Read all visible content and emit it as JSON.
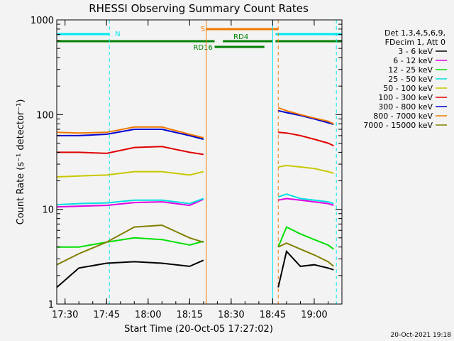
{
  "chart_data": {
    "type": "line",
    "title": "RHESSI Observing Summary Count Rates",
    "xlabel": "Start Time (20-Oct-05 17:27:02)",
    "ylabel": "Count Rate (s⁻¹ detector⁻¹)",
    "yscale": "log",
    "xlim": [
      "17:27",
      "19:10"
    ],
    "ylim": [
      1,
      1000
    ],
    "x_ticks": [
      "17:30",
      "17:45",
      "18:00",
      "18:15",
      "18:30",
      "18:45",
      "19:00"
    ],
    "y_ticks": [
      "1",
      "10",
      "100",
      "1000"
    ],
    "legend_header": [
      "Det 1,3,4,5,6,9,",
      "FDecim 1, Att 0"
    ],
    "legend_position": "right",
    "footer": "20-Oct-2021 19:18",
    "series": [
      {
        "name": "3 - 6 keV",
        "color": "#000000",
        "x": [
          "17:27",
          "17:35",
          "17:45",
          "17:55",
          "18:05",
          "18:15",
          "18:20",
          "18:47",
          "18:50",
          "18:55",
          "19:00",
          "19:05",
          "19:07"
        ],
        "y": [
          1.5,
          2.4,
          2.7,
          2.8,
          2.7,
          2.5,
          2.9,
          1.5,
          3.6,
          2.5,
          2.6,
          2.4,
          2.3
        ]
      },
      {
        "name": "6 - 12 keV",
        "color": "#e000e0",
        "x": [
          "17:27",
          "17:35",
          "17:45",
          "17:55",
          "18:05",
          "18:15",
          "18:20",
          "18:47",
          "18:50",
          "18:55",
          "19:00",
          "19:05",
          "19:07"
        ],
        "y": [
          10.6,
          10.8,
          11,
          11.8,
          12,
          11,
          12.8,
          12.5,
          13,
          12.5,
          12,
          11.5,
          11
        ]
      },
      {
        "name": "12 - 25 keV",
        "color": "#00e000",
        "x": [
          "17:27",
          "17:35",
          "17:45",
          "17:55",
          "18:05",
          "18:15",
          "18:20",
          "18:47",
          "18:50",
          "18:55",
          "19:00",
          "19:05",
          "19:07"
        ],
        "y": [
          4,
          4,
          4.5,
          5,
          4.8,
          4.2,
          4.6,
          4,
          6.5,
          5.5,
          4.8,
          4.2,
          3.8
        ]
      },
      {
        "name": "25 - 50 keV",
        "color": "#00e0e0",
        "x": [
          "17:27",
          "17:35",
          "17:45",
          "17:55",
          "18:05",
          "18:15",
          "18:20",
          "18:47",
          "18:50",
          "18:55",
          "19:00",
          "19:05",
          "19:07"
        ],
        "y": [
          11.2,
          11.5,
          11.7,
          12.5,
          12.5,
          11.5,
          13,
          13.5,
          14.5,
          13,
          12.5,
          12,
          11.5
        ]
      },
      {
        "name": "50 - 100 keV",
        "color": "#c8c800",
        "x": [
          "17:27",
          "17:35",
          "17:45",
          "17:55",
          "18:05",
          "18:15",
          "18:20",
          "18:47",
          "18:50",
          "18:55",
          "19:00",
          "19:05",
          "19:07"
        ],
        "y": [
          22,
          22.5,
          23,
          25,
          25,
          23,
          25,
          28,
          29,
          28,
          27,
          25,
          24
        ]
      },
      {
        "name": "100 - 300 keV",
        "color": "#e00000",
        "x": [
          "17:27",
          "17:35",
          "17:45",
          "17:55",
          "18:05",
          "18:15",
          "18:20",
          "18:47",
          "18:50",
          "18:55",
          "19:00",
          "19:05",
          "19:07"
        ],
        "y": [
          40,
          40,
          39,
          45,
          46,
          40,
          38,
          65,
          64,
          60,
          55,
          50,
          47
        ]
      },
      {
        "name": "300 - 800 keV",
        "color": "#0000d0",
        "x": [
          "17:27",
          "17:35",
          "17:45",
          "17:55",
          "18:05",
          "18:15",
          "18:20",
          "18:47",
          "18:50",
          "18:55",
          "19:00",
          "19:05",
          "19:07"
        ],
        "y": [
          60,
          60,
          62,
          70,
          70,
          60,
          55,
          110,
          105,
          98,
          90,
          82,
          79
        ]
      },
      {
        "name": "800 - 7000 keV",
        "color": "#f07800",
        "x": [
          "17:27",
          "17:35",
          "17:45",
          "17:55",
          "18:05",
          "18:15",
          "18:20",
          "18:47",
          "18:50",
          "18:55",
          "19:00",
          "19:05",
          "19:07"
        ],
        "y": [
          65,
          64,
          65,
          74,
          74,
          62,
          57,
          118,
          110,
          100,
          92,
          85,
          80
        ]
      },
      {
        "name": "7000 - 15000 keV",
        "color": "#808000",
        "x": [
          "17:27",
          "17:35",
          "17:45",
          "17:55",
          "18:05",
          "18:15",
          "18:20",
          "18:47",
          "18:50",
          "18:55",
          "19:00",
          "19:05",
          "19:07"
        ],
        "y": [
          2.6,
          3.4,
          4.5,
          6.5,
          6.8,
          5,
          4.5,
          4,
          4.4,
          3.8,
          3.3,
          2.8,
          2.5
        ]
      }
    ],
    "flags": [
      {
        "label": "N",
        "color": "#00e8f0",
        "segments": [
          [
            "17:27",
            "17:46"
          ],
          [
            "18:46",
            "19:10"
          ]
        ]
      },
      {
        "label": "S",
        "color": "#f07800",
        "segments": [
          [
            "18:21",
            "18:47"
          ]
        ]
      },
      {
        "label": "RD4",
        "color": "#008000",
        "segments": [
          [
            "17:27",
            "18:24"
          ],
          [
            "18:27",
            "18:45"
          ],
          [
            "18:46",
            "19:10"
          ]
        ]
      },
      {
        "label": "RD16",
        "color": "#008000",
        "segments": [
          [
            "18:24",
            "18:42"
          ]
        ]
      }
    ],
    "markers": [
      {
        "x": "17:46",
        "color": "#00e8f0",
        "style": "dashed"
      },
      {
        "x": "18:21",
        "color": "#f07800",
        "style": "solid"
      },
      {
        "x": "18:45",
        "color": "#00e8f0",
        "style": "solid"
      },
      {
        "x": "18:47",
        "color": "#f07800",
        "style": "dashed"
      },
      {
        "x": "19:08",
        "color": "#00e8f0",
        "style": "dashed"
      }
    ]
  }
}
